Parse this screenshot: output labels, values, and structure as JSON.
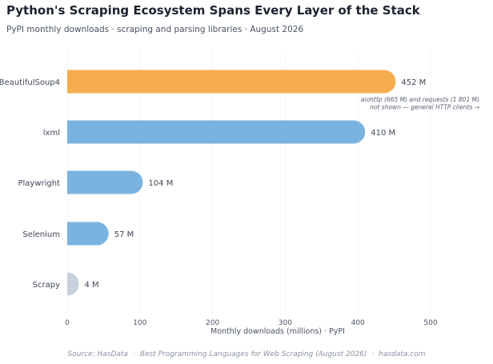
{
  "chart_data": {
    "type": "bar",
    "orientation": "horizontal",
    "title": "Python's Scraping Ecosystem Spans Every Layer of the Stack",
    "subtitle": "PyPI monthly downloads · scraping and parsing libraries · August 2026",
    "categories": [
      "BeautifulSoup4",
      "lxml",
      "Playwright",
      "Selenium",
      "Scrapy"
    ],
    "values": [
      452,
      410,
      104,
      57,
      4
    ],
    "value_labels": [
      "452 M",
      "410 M",
      "104 M",
      "57 M",
      "4 M"
    ],
    "colors": [
      "#f5ad4f",
      "#7ab3e0",
      "#7ab3e0",
      "#7ab3e0",
      "#c7d0dc"
    ],
    "xlabel": "Monthly downloads (millions) · PyPI",
    "ylabel": "",
    "xlim": [
      0,
      520
    ],
    "xticks": [
      0,
      100,
      200,
      300,
      400,
      500
    ],
    "grid": "vertical dotted",
    "annotation": {
      "lines": [
        "aiohttp (665 M) and requests (1 801 M)",
        "not shown — general HTTP clients →"
      ],
      "anchor_category": "BeautifulSoup4"
    },
    "source": {
      "parts": [
        "Source: HasData",
        "Best Programming Languages for Web Scraping (August 2026)",
        "hasdata.com"
      ],
      "separator": "·"
    }
  }
}
